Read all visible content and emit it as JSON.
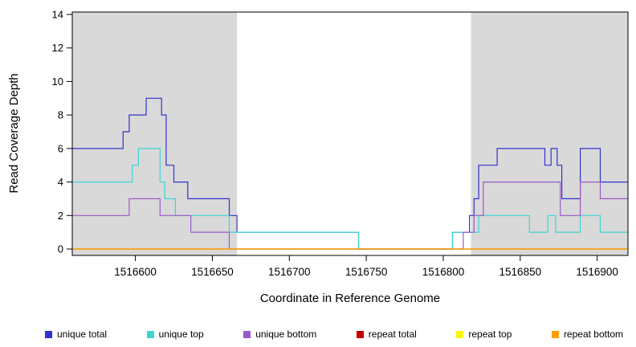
{
  "chart_data": {
    "type": "line",
    "subtype": "step-coverage-plot",
    "title": "",
    "xlabel": "Coordinate in Reference Genome",
    "ylabel": "Read Coverage Depth",
    "xlim": [
      1516559,
      1516920
    ],
    "ylim": [
      0,
      14
    ],
    "xticks": [
      1516600,
      1516650,
      1516700,
      1516750,
      1516800,
      1516850,
      1516900
    ],
    "yticks": [
      0,
      2,
      4,
      6,
      8,
      10,
      12,
      14
    ],
    "grid": false,
    "legend_position": "bottom",
    "shaded_region_color": "#d9d9d9",
    "shaded_regions": [
      {
        "x0": 1516559,
        "x1": 1516666,
        "color": "#d9d9d9"
      },
      {
        "x0": 1516818,
        "x1": 1516920,
        "color": "#d9d9d9"
      }
    ],
    "series": [
      {
        "name": "unique total",
        "color": "#3232cd",
        "points": [
          [
            1516559,
            6
          ],
          [
            1516592,
            7
          ],
          [
            1516596,
            8
          ],
          [
            1516607,
            9
          ],
          [
            1516617,
            8
          ],
          [
            1516620,
            5
          ],
          [
            1516625,
            4
          ],
          [
            1516634,
            3
          ],
          [
            1516661,
            2
          ],
          [
            1516666,
            1
          ],
          [
            1516745,
            0
          ],
          [
            1516806,
            1
          ],
          [
            1516817,
            2
          ],
          [
            1516820,
            3
          ],
          [
            1516823,
            5
          ],
          [
            1516835,
            6
          ],
          [
            1516866,
            5
          ],
          [
            1516870,
            6
          ],
          [
            1516874,
            5
          ],
          [
            1516877,
            3
          ],
          [
            1516889,
            6
          ],
          [
            1516902,
            4
          ],
          [
            1516920,
            4
          ]
        ]
      },
      {
        "name": "unique top",
        "color": "#3fd4d4",
        "points": [
          [
            1516559,
            4
          ],
          [
            1516598,
            5
          ],
          [
            1516602,
            6
          ],
          [
            1516616,
            4
          ],
          [
            1516619,
            3
          ],
          [
            1516626,
            2
          ],
          [
            1516661,
            1
          ],
          [
            1516745,
            0
          ],
          [
            1516806,
            1
          ],
          [
            1516823,
            2
          ],
          [
            1516856,
            1
          ],
          [
            1516868,
            2
          ],
          [
            1516873,
            1
          ],
          [
            1516889,
            2
          ],
          [
            1516902,
            1
          ],
          [
            1516920,
            1
          ]
        ]
      },
      {
        "name": "unique bottom",
        "color": "#9c59c9",
        "points": [
          [
            1516559,
            2
          ],
          [
            1516596,
            3
          ],
          [
            1516616,
            2
          ],
          [
            1516636,
            1
          ],
          [
            1516661,
            0
          ],
          [
            1516813,
            1
          ],
          [
            1516820,
            2
          ],
          [
            1516826,
            4
          ],
          [
            1516876,
            2
          ],
          [
            1516889,
            4
          ],
          [
            1516902,
            3
          ],
          [
            1516920,
            3
          ]
        ]
      },
      {
        "name": "repeat total",
        "color": "#c40000",
        "points": [
          [
            1516559,
            0
          ],
          [
            1516920,
            0
          ]
        ]
      },
      {
        "name": "repeat top",
        "color": "#f8f800",
        "points": [
          [
            1516559,
            0
          ],
          [
            1516920,
            0
          ]
        ]
      },
      {
        "name": "repeat bottom",
        "color": "#ff9e00",
        "points": [
          [
            1516559,
            0
          ],
          [
            1516920,
            0
          ]
        ]
      }
    ]
  }
}
